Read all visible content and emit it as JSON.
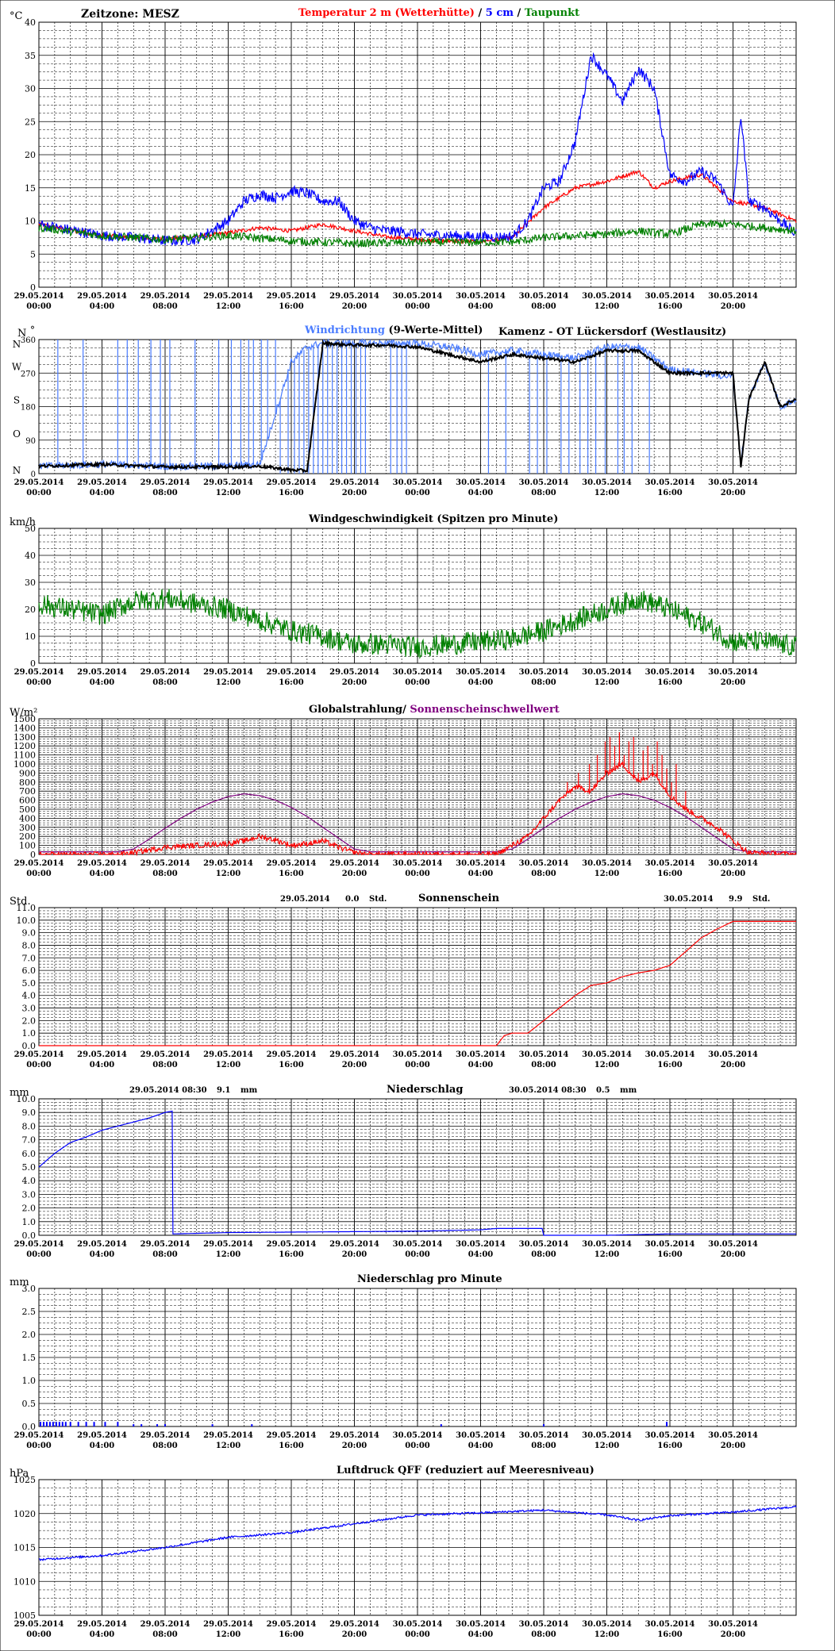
{
  "header": {
    "timezone": "Zeitzone: MESZ",
    "station": "Kamenz - OT Lückersdorf (Westlausitz)"
  },
  "x_axis": {
    "ticks": [
      [
        "29.05.2014",
        "00:00"
      ],
      [
        "29.05.2014",
        "04:00"
      ],
      [
        "29.05.2014",
        "08:00"
      ],
      [
        "29.05.2014",
        "12:00"
      ],
      [
        "29.05.2014",
        "16:00"
      ],
      [
        "29.05.2014",
        "20:00"
      ],
      [
        "30.05.2014",
        "00:00"
      ],
      [
        "30.05.2014",
        "04:00"
      ],
      [
        "30.05.2014",
        "08:00"
      ],
      [
        "30.05.2014",
        "12:00"
      ],
      [
        "30.05.2014",
        "16:00"
      ],
      [
        "30.05.2014",
        "20:00"
      ]
    ],
    "range_hours": [
      0,
      48
    ]
  },
  "colors": {
    "red": "#ff0000",
    "blue": "#0000ff",
    "green": "#008000",
    "purple": "#800080",
    "black": "#000000",
    "lightblue": "#4a7cff",
    "grid": "#000000"
  },
  "chart_data": [
    {
      "id": "temperature",
      "type": "line",
      "unit": "°C",
      "ylim": [
        0,
        40
      ],
      "yticks": [
        0,
        5,
        10,
        15,
        20,
        25,
        30,
        35,
        40
      ],
      "title": [
        {
          "text": "Temperatur 2 m (Wetterhütte)",
          "color": "#ff0000"
        },
        {
          "text": "  /  ",
          "color": "#000000"
        },
        {
          "text": "5 cm",
          "color": "#0000ff"
        },
        {
          "text": " / ",
          "color": "#000000"
        },
        {
          "text": "Taupunkt",
          "color": "#008000"
        }
      ],
      "series": [
        {
          "name": "Temperatur 2 m (Wetterhütte)",
          "color": "#ff0000",
          "noise": 0.3,
          "x": [
            0,
            4,
            8,
            12,
            14,
            16,
            18,
            20,
            22,
            24,
            26,
            28,
            30,
            32,
            34,
            36,
            38,
            39,
            40,
            42,
            44,
            46,
            48
          ],
          "values": [
            9.5,
            7.8,
            7.2,
            8.2,
            9.0,
            8.5,
            9.5,
            8.5,
            7.6,
            7.2,
            7.0,
            6.9,
            7.5,
            12,
            15,
            16,
            17.5,
            15,
            16,
            17,
            13,
            12,
            10
          ]
        },
        {
          "name": "5 cm",
          "color": "#0000ff",
          "noise": 0.8,
          "x": [
            0,
            4,
            6,
            8,
            10,
            12,
            13,
            14,
            15,
            16,
            17,
            18,
            19,
            20,
            21,
            22,
            23,
            24,
            26,
            28,
            30,
            31,
            32,
            33,
            34,
            35,
            36,
            37,
            38,
            39,
            40,
            41,
            42,
            43,
            44,
            44.5,
            45,
            46,
            47,
            48
          ],
          "values": [
            9.5,
            7.8,
            7.5,
            7.0,
            7.2,
            10,
            13,
            14,
            13.5,
            14.5,
            14.2,
            13,
            13,
            10,
            9,
            8.5,
            8.4,
            8,
            7.8,
            7.6,
            7.6,
            10,
            15,
            16,
            22,
            35,
            32,
            28,
            33,
            30,
            17,
            16,
            17.5,
            16,
            12,
            26,
            13,
            12,
            10,
            8
          ]
        },
        {
          "name": "Taupunkt",
          "color": "#008000",
          "noise": 0.6,
          "x": [
            0,
            4,
            8,
            12,
            16,
            20,
            24,
            28,
            30,
            32,
            36,
            38,
            40,
            42,
            44,
            46,
            48
          ],
          "values": [
            9.0,
            7.8,
            7.2,
            7.8,
            7.0,
            6.6,
            6.8,
            6.8,
            6.8,
            7.5,
            8,
            8.5,
            8,
            9.5,
            9.5,
            9,
            8.5
          ]
        }
      ]
    },
    {
      "id": "wind_direction",
      "type": "line",
      "unit": "N",
      "unit_degree": "°",
      "ylim": [
        0,
        360
      ],
      "yticks": [
        0,
        90,
        180,
        270,
        360
      ],
      "compass": [
        {
          "label": "N",
          "value": 0
        },
        {
          "label": "O",
          "value": 90
        },
        {
          "label": "S",
          "value": 180
        },
        {
          "label": "W",
          "value": 270
        },
        {
          "label": "N",
          "value": 360
        }
      ],
      "title": [
        {
          "text": "Windrichtung",
          "color": "#4a7cff"
        },
        {
          "text": " (9-Werte-Mittel)",
          "color": "#000000"
        }
      ],
      "series": [
        {
          "name": "Windrichtung",
          "color": "#4a7cff",
          "noise": 10,
          "x": [
            0,
            4,
            8,
            12,
            14,
            16,
            17,
            18,
            20,
            22,
            24,
            26,
            28,
            30,
            32,
            34,
            36,
            38,
            40,
            42,
            44,
            44.5,
            45,
            46,
            47,
            48
          ],
          "values": [
            20,
            25,
            20,
            20,
            25,
            300,
            340,
            350,
            350,
            350,
            350,
            340,
            320,
            330,
            320,
            310,
            340,
            340,
            280,
            270,
            260,
            30,
            200,
            300,
            180,
            200
          ],
          "spikes_x": [
            1.2,
            2.8,
            5.0,
            5.6,
            6.3,
            7.1,
            7.7,
            8.3,
            9.9,
            11.4,
            12.2,
            12.8,
            13.3,
            13.6,
            14.1,
            14.5,
            15.0,
            15.3,
            15.8,
            16.2,
            16.5,
            16.8,
            17.1,
            17.4,
            17.7,
            18.0,
            18.3,
            18.6,
            18.9,
            19.2,
            19.5,
            19.8,
            20.1,
            20.4,
            20.7,
            22.3,
            22.7,
            23.0,
            23.3,
            28.5,
            29.6,
            31.1,
            31.6,
            32.2,
            33.1,
            33.6,
            34.3,
            34.8,
            35.3,
            35.9,
            36.7,
            37.1,
            37.6,
            38.7
          ]
        },
        {
          "name": "Mittel",
          "color": "#000000",
          "noise": 4,
          "x": [
            0,
            4,
            8,
            12,
            14,
            16,
            17,
            18,
            20,
            22,
            24,
            26,
            28,
            30,
            32,
            34,
            36,
            38,
            40,
            42,
            44,
            44.5,
            45,
            46,
            47,
            48
          ],
          "values": [
            20,
            25,
            18,
            18,
            20,
            10,
            8,
            350,
            345,
            345,
            340,
            320,
            300,
            320,
            310,
            300,
            330,
            330,
            270,
            270,
            270,
            20,
            200,
            300,
            180,
            200
          ]
        }
      ]
    },
    {
      "id": "wind_speed",
      "type": "line",
      "unit": "km/h",
      "ylim": [
        0,
        50
      ],
      "yticks": [
        0,
        10,
        20,
        30,
        40,
        50
      ],
      "title": [
        {
          "text": "Windgeschwindigkeit (Spitzen pro Minute)",
          "color": "#000000"
        }
      ],
      "series": [
        {
          "name": "Windgeschwindigkeit",
          "color": "#008000",
          "noise": 4,
          "x": [
            0,
            2,
            4,
            6,
            8,
            10,
            12,
            14,
            16,
            18,
            20,
            22,
            24,
            26,
            28,
            30,
            32,
            34,
            36,
            38,
            40,
            42,
            44,
            46,
            48
          ],
          "values": [
            22,
            20,
            18,
            23,
            24,
            22,
            20,
            16,
            12,
            10,
            7,
            7,
            6,
            7,
            8,
            9,
            12,
            16,
            20,
            24,
            20,
            15,
            8,
            8,
            6
          ]
        }
      ]
    },
    {
      "id": "global_radiation",
      "type": "line",
      "unit": "W/m²",
      "ylim": [
        0,
        1500
      ],
      "yticks": [
        0,
        100,
        200,
        300,
        400,
        500,
        600,
        700,
        800,
        900,
        1000,
        1100,
        1200,
        1300,
        1400,
        1500
      ],
      "title": [
        {
          "text": "Globalstrahlung/ ",
          "color": "#000000"
        },
        {
          "text": "Sonnenscheinschwellwert",
          "color": "#800080"
        }
      ],
      "series": [
        {
          "name": "Sonnenscheinschwellwert",
          "color": "#800080",
          "noise": 0,
          "x": [
            0,
            5,
            6,
            7,
            8,
            9,
            10,
            11,
            12,
            13,
            14,
            15,
            16,
            17,
            18,
            19,
            20,
            21,
            29,
            30,
            31,
            32,
            33,
            34,
            35,
            36,
            37,
            38,
            39,
            40,
            41,
            42,
            43,
            44,
            45,
            48
          ],
          "values": [
            30,
            30,
            60,
            170,
            290,
            400,
            500,
            580,
            640,
            670,
            650,
            600,
            520,
            420,
            300,
            180,
            60,
            30,
            30,
            60,
            170,
            290,
            400,
            500,
            580,
            640,
            670,
            650,
            600,
            520,
            420,
            300,
            180,
            60,
            30,
            30
          ]
        },
        {
          "name": "Globalstrahlung",
          "color": "#ff0000",
          "noise": 30,
          "x": [
            0,
            5,
            6,
            8,
            10,
            12,
            13,
            14,
            15,
            16,
            17,
            18,
            19,
            20,
            21,
            29,
            30,
            31,
            32,
            33,
            34,
            35,
            36,
            37,
            38,
            39,
            40,
            41,
            42,
            43,
            44,
            45,
            48
          ],
          "values": [
            0,
            0,
            20,
            80,
            100,
            120,
            150,
            200,
            160,
            100,
            120,
            150,
            80,
            20,
            0,
            0,
            100,
            200,
            400,
            600,
            750,
            700,
            900,
            1000,
            800,
            900,
            650,
            500,
            400,
            300,
            150,
            20,
            0
          ],
          "spikes_x": [
            33.5,
            34.2,
            34.9,
            35.4,
            35.9,
            36.2,
            36.5,
            36.8,
            37.1,
            37.4,
            37.7,
            38.0,
            38.3,
            38.6,
            38.9,
            39.2,
            39.5,
            39.8,
            40.1,
            40.4,
            41.0
          ],
          "spike_values": [
            800,
            900,
            1000,
            1100,
            1250,
            1300,
            1200,
            1350,
            1100,
            1250,
            1300,
            900,
            1150,
            1200,
            1000,
            1250,
            1100,
            950,
            800,
            1000,
            700
          ]
        }
      ]
    },
    {
      "id": "sunshine",
      "type": "line",
      "unit": "Std.",
      "ylim": [
        0,
        11
      ],
      "yticks": [
        0,
        1,
        2,
        3,
        4,
        5,
        6,
        7,
        8,
        9,
        10,
        11
      ],
      "title": [
        {
          "text": "Sonnenschein",
          "color": "#000000"
        }
      ],
      "annotations": [
        {
          "date": "29.05.2014",
          "value": "0.0",
          "unit": "Std."
        },
        {
          "date": "30.05.2014",
          "value": "9.9",
          "unit": "Std."
        }
      ],
      "series": [
        {
          "name": "Sonnenschein",
          "color": "#ff0000",
          "noise": 0,
          "x": [
            0,
            29,
            29.5,
            30,
            31,
            32,
            33,
            34,
            35,
            36,
            37,
            38,
            39,
            40,
            41,
            42,
            43,
            44,
            48
          ],
          "values": [
            0,
            0,
            0.8,
            1.0,
            1.0,
            2.0,
            3.0,
            4.0,
            4.8,
            5.0,
            5.5,
            5.8,
            6.0,
            6.4,
            7.5,
            8.6,
            9.3,
            9.9,
            9.9
          ]
        }
      ]
    },
    {
      "id": "precipitation",
      "type": "line",
      "unit": "mm",
      "ylim": [
        0,
        10
      ],
      "yticks": [
        0,
        1,
        2,
        3,
        4,
        5,
        6,
        7,
        8,
        9,
        10
      ],
      "title": [
        {
          "text": "Niederschlag",
          "color": "#000000"
        }
      ],
      "annotations": [
        {
          "date": "29.05.2014 08:30",
          "value": "9.1",
          "unit": "mm"
        },
        {
          "date": "30.05.2014 08:30",
          "value": "0.5",
          "unit": "mm"
        }
      ],
      "series": [
        {
          "name": "Niederschlag",
          "color": "#0000ff",
          "noise": 0,
          "x": [
            0,
            1,
            2,
            3,
            4,
            5,
            6,
            7,
            8,
            8.45,
            8.5,
            12,
            24,
            28,
            29,
            30,
            31.9,
            32,
            36,
            40,
            48
          ],
          "values": [
            5.0,
            6.0,
            6.8,
            7.2,
            7.7,
            8.0,
            8.3,
            8.6,
            9.0,
            9.1,
            0.1,
            0.2,
            0.3,
            0.4,
            0.5,
            0.5,
            0.5,
            0.0,
            0.0,
            0.1,
            0.1
          ]
        }
      ]
    },
    {
      "id": "precipitation_per_minute",
      "type": "bar",
      "unit": "mm",
      "ylim": [
        0,
        3
      ],
      "yticks": [
        0,
        0.5,
        1.0,
        1.5,
        2.0,
        2.5,
        3.0
      ],
      "title": [
        {
          "text": "Niederschlag pro Minute",
          "color": "#000000"
        }
      ],
      "series": [
        {
          "name": "Niederschlag pro Minute",
          "color": "#0000ff",
          "x": [
            0.1,
            0.3,
            0.5,
            0.7,
            0.9,
            1.1,
            1.3,
            1.5,
            1.7,
            2.0,
            2.5,
            3.0,
            3.5,
            4.2,
            5.0,
            6.0,
            6.5,
            7.5,
            8.0,
            11.0,
            13.5,
            25.5,
            32.0,
            39.8
          ],
          "values": [
            0.1,
            0.1,
            0.1,
            0.1,
            0.1,
            0.1,
            0.1,
            0.1,
            0.1,
            0.1,
            0.1,
            0.1,
            0.1,
            0.1,
            0.1,
            0.05,
            0.05,
            0.05,
            0.05,
            0.05,
            0.05,
            0.05,
            0.05,
            0.1
          ]
        }
      ]
    },
    {
      "id": "pressure",
      "type": "line",
      "unit": "hPa",
      "ylim": [
        1005,
        1025
      ],
      "yticks": [
        1005,
        1010,
        1015,
        1020,
        1025
      ],
      "title": [
        {
          "text": "Luftdruck QFF (reduziert auf Meeresniveau)",
          "color": "#000000"
        }
      ],
      "series": [
        {
          "name": "Luftdruck QFF",
          "color": "#0000ff",
          "noise": 0.15,
          "x": [
            0,
            4,
            8,
            12,
            16,
            20,
            24,
            28,
            32,
            36,
            38,
            40,
            44,
            48
          ],
          "values": [
            1013.2,
            1013.8,
            1015,
            1016.5,
            1017.2,
            1018.5,
            1019.8,
            1020.1,
            1020.5,
            1019.8,
            1019,
            1019.7,
            1020.2,
            1021
          ]
        }
      ]
    }
  ]
}
